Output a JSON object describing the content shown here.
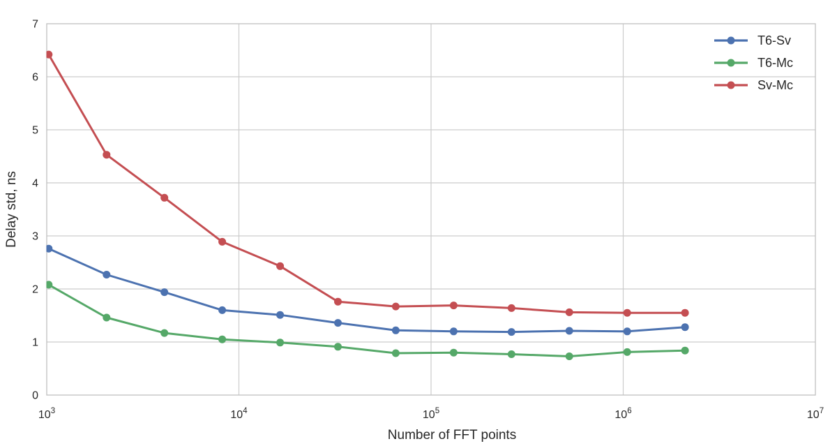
{
  "figure": {
    "background": "#ffffff",
    "text_color": "#262626",
    "grid_color": "#cccccc",
    "spine_color": "#bfbfbf"
  },
  "chart_data": {
    "type": "line",
    "title": "",
    "xlabel": "Number of FFT points",
    "ylabel": "Delay std, ns",
    "x_scale": "log10",
    "xlim": [
      1000,
      10000000
    ],
    "ylim": [
      0,
      7
    ],
    "x_tick_base": "10",
    "x_tick_exponents": [
      3,
      4,
      5,
      6,
      7
    ],
    "y_ticks": [
      0,
      1,
      2,
      3,
      4,
      5,
      6,
      7
    ],
    "grid": true,
    "legend_position": "upper-right",
    "marker": "circle",
    "x": [
      1024,
      2048,
      4096,
      8192,
      16384,
      32768,
      65536,
      131072,
      262144,
      524288,
      1048576,
      2097152
    ],
    "series": [
      {
        "name": "T6-Sv",
        "color": "#4C72B0",
        "values": [
          2.76,
          2.27,
          1.94,
          1.6,
          1.51,
          1.36,
          1.22,
          1.2,
          1.19,
          1.21,
          1.2,
          1.28
        ]
      },
      {
        "name": "T6-Mc",
        "color": "#55A868",
        "values": [
          2.08,
          1.46,
          1.17,
          1.05,
          0.99,
          0.91,
          0.79,
          0.8,
          0.77,
          0.73,
          0.81,
          0.84
        ]
      },
      {
        "name": "Sv-Mc",
        "color": "#C44E52",
        "values": [
          6.42,
          4.53,
          3.72,
          2.89,
          2.43,
          1.76,
          1.67,
          1.69,
          1.64,
          1.56,
          1.55,
          1.55
        ]
      }
    ]
  }
}
